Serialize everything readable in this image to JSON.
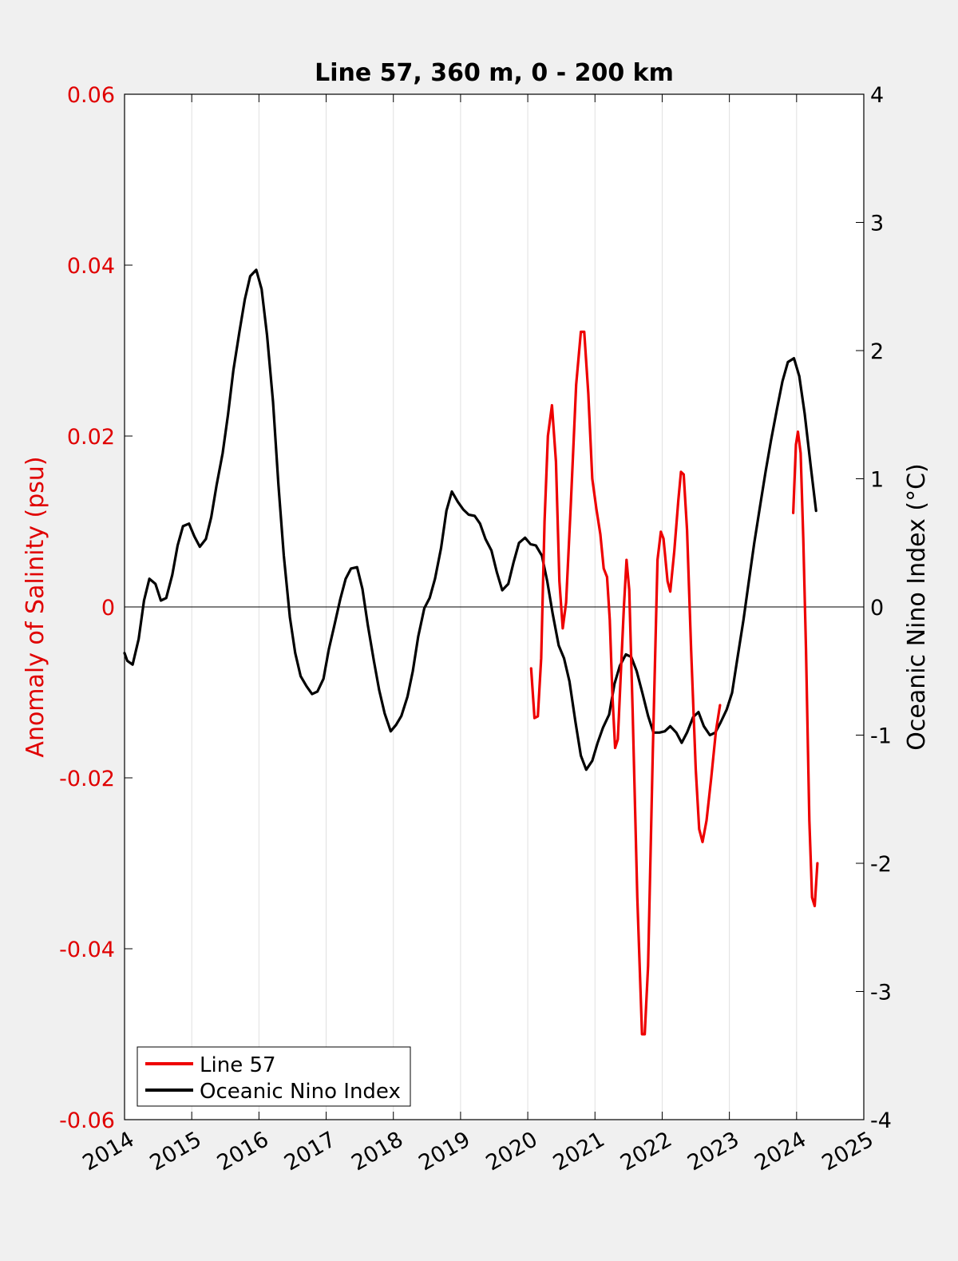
{
  "chart_data": {
    "type": "line",
    "title": "Line 57, 360 m, 0 - 200 km",
    "xlabel": "",
    "ylabel_left": "Anomaly of Salinity (psu)",
    "ylabel_right": "Oceanic Nino Index (°C)",
    "xlim": [
      2014,
      2025
    ],
    "ylim_left": [
      -0.06,
      0.06
    ],
    "ylim_right": [
      -4,
      4
    ],
    "x_ticks": [
      "2014",
      "2015",
      "2016",
      "2017",
      "2018",
      "2019",
      "2020",
      "2021",
      "2022",
      "2023",
      "2024",
      "2025"
    ],
    "y_ticks_left": [
      "-0.06",
      "-0.04",
      "-0.02",
      "0",
      "0.02",
      "0.04",
      "0.06"
    ],
    "y_ticks_right": [
      "-4",
      "-3",
      "-2",
      "-1",
      "0",
      "1",
      "2",
      "3",
      "4"
    ],
    "grid": "vertical",
    "legend_position": "bottom-left",
    "colors": {
      "left_axis": "#e00000",
      "line57": "#ee0000",
      "oni": "#000000",
      "axes": "#000000",
      "background": "#f0f0f0",
      "plot_area": "#ffffff",
      "grid": "#e0e0e0"
    },
    "series": [
      {
        "name": "Line 57",
        "axis": "left",
        "segments": [
          [
            [
              2020.05,
              -0.0072
            ],
            [
              2020.1,
              -0.013
            ],
            [
              2020.15,
              -0.0128
            ],
            [
              2020.2,
              -0.006
            ],
            [
              2020.25,
              0.01
            ],
            [
              2020.3,
              0.02
            ],
            [
              2020.36,
              0.0236
            ],
            [
              2020.42,
              0.017
            ],
            [
              2020.47,
              0.003
            ],
            [
              2020.52,
              -0.0025
            ],
            [
              2020.57,
              0.0005
            ],
            [
              2020.64,
              0.012
            ],
            [
              2020.72,
              0.026
            ],
            [
              2020.79,
              0.0322
            ],
            [
              2020.84,
              0.0322
            ],
            [
              2020.9,
              0.025
            ],
            [
              2020.96,
              0.015
            ],
            [
              2021.02,
              0.0115
            ],
            [
              2021.08,
              0.0085
            ],
            [
              2021.13,
              0.0045
            ],
            [
              2021.18,
              0.0035
            ],
            [
              2021.22,
              -0.0015
            ],
            [
              2021.26,
              -0.0105
            ],
            [
              2021.3,
              -0.0165
            ],
            [
              2021.34,
              -0.0155
            ],
            [
              2021.38,
              -0.0085
            ],
            [
              2021.43,
              0.0
            ],
            [
              2021.47,
              0.0055
            ],
            [
              2021.51,
              0.002
            ],
            [
              2021.56,
              -0.012
            ],
            [
              2021.63,
              -0.034
            ],
            [
              2021.7,
              -0.05
            ],
            [
              2021.74,
              -0.05
            ],
            [
              2021.79,
              -0.042
            ],
            [
              2021.86,
              -0.017
            ],
            [
              2021.93,
              0.0055
            ],
            [
              2021.98,
              0.0088
            ],
            [
              2022.02,
              0.008
            ],
            [
              2022.08,
              0.003
            ],
            [
              2022.12,
              0.0018
            ],
            [
              2022.18,
              0.0065
            ],
            [
              2022.24,
              0.0125
            ],
            [
              2022.28,
              0.0158
            ],
            [
              2022.32,
              0.0155
            ],
            [
              2022.37,
              0.009
            ],
            [
              2022.43,
              -0.005
            ],
            [
              2022.5,
              -0.019
            ],
            [
              2022.55,
              -0.026
            ],
            [
              2022.6,
              -0.0275
            ],
            [
              2022.66,
              -0.025
            ],
            [
              2022.73,
              -0.02
            ],
            [
              2022.8,
              -0.0145
            ],
            [
              2022.86,
              -0.0115
            ]
          ],
          [
            [
              2023.95,
              0.011
            ],
            [
              2023.99,
              0.019
            ],
            [
              2024.02,
              0.0205
            ],
            [
              2024.06,
              0.018
            ],
            [
              2024.1,
              0.008
            ],
            [
              2024.14,
              -0.005
            ],
            [
              2024.19,
              -0.025
            ],
            [
              2024.23,
              -0.034
            ],
            [
              2024.27,
              -0.035
            ],
            [
              2024.31,
              -0.03
            ]
          ]
        ]
      },
      {
        "name": "Oceanic Nino Index",
        "axis": "right",
        "points": [
          [
            2014.0,
            -0.36
          ],
          [
            2014.04,
            -0.42
          ],
          [
            2014.12,
            -0.45
          ],
          [
            2014.21,
            -0.25
          ],
          [
            2014.29,
            0.05
          ],
          [
            2014.37,
            0.22
          ],
          [
            2014.46,
            0.18
          ],
          [
            2014.54,
            0.05
          ],
          [
            2014.62,
            0.07
          ],
          [
            2014.71,
            0.25
          ],
          [
            2014.79,
            0.48
          ],
          [
            2014.87,
            0.63
          ],
          [
            2014.96,
            0.65
          ],
          [
            2015.04,
            0.55
          ],
          [
            2015.12,
            0.47
          ],
          [
            2015.21,
            0.53
          ],
          [
            2015.29,
            0.7
          ],
          [
            2015.37,
            0.95
          ],
          [
            2015.46,
            1.2
          ],
          [
            2015.54,
            1.5
          ],
          [
            2015.62,
            1.85
          ],
          [
            2015.71,
            2.15
          ],
          [
            2015.79,
            2.4
          ],
          [
            2015.87,
            2.58
          ],
          [
            2015.96,
            2.63
          ],
          [
            2016.04,
            2.48
          ],
          [
            2016.12,
            2.12
          ],
          [
            2016.21,
            1.6
          ],
          [
            2016.29,
            0.95
          ],
          [
            2016.37,
            0.4
          ],
          [
            2016.46,
            -0.08
          ],
          [
            2016.54,
            -0.36
          ],
          [
            2016.62,
            -0.54
          ],
          [
            2016.71,
            -0.62
          ],
          [
            2016.79,
            -0.68
          ],
          [
            2016.87,
            -0.66
          ],
          [
            2016.96,
            -0.56
          ],
          [
            2017.04,
            -0.33
          ],
          [
            2017.12,
            -0.15
          ],
          [
            2017.21,
            0.06
          ],
          [
            2017.29,
            0.22
          ],
          [
            2017.37,
            0.3
          ],
          [
            2017.46,
            0.31
          ],
          [
            2017.54,
            0.14
          ],
          [
            2017.62,
            -0.14
          ],
          [
            2017.71,
            -0.42
          ],
          [
            2017.79,
            -0.65
          ],
          [
            2017.87,
            -0.83
          ],
          [
            2017.96,
            -0.97
          ],
          [
            2018.04,
            -0.92
          ],
          [
            2018.12,
            -0.85
          ],
          [
            2018.21,
            -0.7
          ],
          [
            2018.29,
            -0.5
          ],
          [
            2018.37,
            -0.23
          ],
          [
            2018.46,
            -0.01
          ],
          [
            2018.54,
            0.07
          ],
          [
            2018.62,
            0.22
          ],
          [
            2018.71,
            0.46
          ],
          [
            2018.79,
            0.75
          ],
          [
            2018.87,
            0.9
          ],
          [
            2018.96,
            0.82
          ],
          [
            2019.04,
            0.76
          ],
          [
            2019.12,
            0.72
          ],
          [
            2019.21,
            0.71
          ],
          [
            2019.29,
            0.65
          ],
          [
            2019.37,
            0.53
          ],
          [
            2019.46,
            0.44
          ],
          [
            2019.54,
            0.27
          ],
          [
            2019.62,
            0.13
          ],
          [
            2019.71,
            0.18
          ],
          [
            2019.79,
            0.35
          ],
          [
            2019.87,
            0.5
          ],
          [
            2019.96,
            0.54
          ],
          [
            2020.04,
            0.49
          ],
          [
            2020.12,
            0.48
          ],
          [
            2020.21,
            0.4
          ],
          [
            2020.29,
            0.2
          ],
          [
            2020.37,
            -0.05
          ],
          [
            2020.46,
            -0.3
          ],
          [
            2020.54,
            -0.4
          ],
          [
            2020.62,
            -0.58
          ],
          [
            2020.71,
            -0.9
          ],
          [
            2020.79,
            -1.16
          ],
          [
            2020.87,
            -1.27
          ],
          [
            2020.96,
            -1.2
          ],
          [
            2021.04,
            -1.06
          ],
          [
            2021.12,
            -0.94
          ],
          [
            2021.21,
            -0.84
          ],
          [
            2021.29,
            -0.6
          ],
          [
            2021.37,
            -0.46
          ],
          [
            2021.46,
            -0.37
          ],
          [
            2021.54,
            -0.39
          ],
          [
            2021.62,
            -0.5
          ],
          [
            2021.71,
            -0.68
          ],
          [
            2021.79,
            -0.85
          ],
          [
            2021.87,
            -0.98
          ],
          [
            2021.96,
            -0.98
          ],
          [
            2022.04,
            -0.97
          ],
          [
            2022.12,
            -0.93
          ],
          [
            2022.21,
            -0.98
          ],
          [
            2022.29,
            -1.06
          ],
          [
            2022.37,
            -0.98
          ],
          [
            2022.46,
            -0.86
          ],
          [
            2022.54,
            -0.82
          ],
          [
            2022.62,
            -0.93
          ],
          [
            2022.71,
            -1.0
          ],
          [
            2022.79,
            -0.98
          ],
          [
            2022.87,
            -0.9
          ],
          [
            2022.96,
            -0.8
          ],
          [
            2023.04,
            -0.67
          ],
          [
            2023.12,
            -0.4
          ],
          [
            2023.21,
            -0.1
          ],
          [
            2023.29,
            0.2
          ],
          [
            2023.37,
            0.5
          ],
          [
            2023.46,
            0.8
          ],
          [
            2023.54,
            1.06
          ],
          [
            2023.62,
            1.3
          ],
          [
            2023.71,
            1.55
          ],
          [
            2023.79,
            1.76
          ],
          [
            2023.87,
            1.91
          ],
          [
            2023.96,
            1.94
          ],
          [
            2024.04,
            1.8
          ],
          [
            2024.12,
            1.51
          ],
          [
            2024.21,
            1.1
          ],
          [
            2024.29,
            0.75
          ]
        ]
      }
    ]
  }
}
